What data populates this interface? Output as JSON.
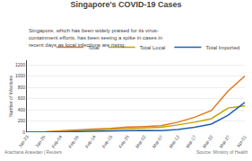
{
  "chart_data": {
    "type": "line",
    "title": "Singapore's COVID-19 Cases",
    "subtitle": "Singapore, which has been widely praised for its virus-\ncontainment efforts, has been seeing a spike in cases in\nrecent days as local infections are rising.",
    "annotations": [
      "Arachana Araiedan | Reuters",
      "Source: Ministry of Health"
    ],
    "ylabel": "Number of Infections",
    "categories": [
      "Jan-23",
      "Jan-29",
      "Feb-04",
      "Feb-09",
      "Feb-14",
      "Feb-15",
      "Feb-26",
      "Mar-02",
      "Mar-07",
      "Mar-12",
      "Mar-17",
      "Mar-22",
      "Mar-27",
      "Apr-01"
    ],
    "series": [
      {
        "name": "Total",
        "color": "#e07820",
        "values": [
          1,
          3,
          24,
          43,
          58,
          67,
          91,
          102,
          117,
          178,
          266,
          385,
          732,
          1000
        ]
      },
      {
        "name": "Total Local",
        "color": "#c8a000",
        "values": [
          1,
          3,
          18,
          30,
          40,
          47,
          60,
          70,
          89,
          130,
          178,
          240,
          430,
          470
        ]
      },
      {
        "name": "Total Imported",
        "color": "#2060b0",
        "values": [
          0,
          0,
          6,
          13,
          18,
          20,
          31,
          32,
          28,
          48,
          88,
          145,
          302,
          530
        ]
      }
    ],
    "ylim": [
      0,
      1280
    ],
    "yticks": [
      0,
      200,
      400,
      600,
      800,
      1000,
      1200
    ],
    "grid": true,
    "legend": "upper right"
  }
}
